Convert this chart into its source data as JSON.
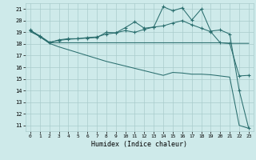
{
  "bg_color": "#ceeaea",
  "grid_color": "#aacccc",
  "line_color": "#2a6e6e",
  "xlabel": "Humidex (Indice chaleur)",
  "xlim": [
    -0.5,
    23.5
  ],
  "ylim": [
    10.5,
    21.5
  ],
  "yticks": [
    11,
    12,
    13,
    14,
    15,
    16,
    17,
    18,
    19,
    20,
    21
  ],
  "xticks": [
    0,
    1,
    2,
    3,
    4,
    5,
    6,
    7,
    8,
    9,
    10,
    11,
    12,
    13,
    14,
    15,
    16,
    17,
    18,
    19,
    20,
    21,
    22,
    23
  ],
  "series": {
    "line1_x": [
      0,
      1,
      2,
      3,
      4,
      5,
      6,
      7,
      8,
      9,
      10,
      11,
      12,
      13,
      14,
      15,
      16,
      17,
      18,
      19,
      20,
      21,
      22,
      23
    ],
    "line1_y": [
      19.2,
      18.6,
      18.1,
      18.35,
      18.45,
      18.45,
      18.5,
      18.55,
      19.0,
      18.95,
      19.4,
      19.9,
      19.35,
      19.45,
      21.2,
      20.85,
      21.1,
      20.05,
      21.0,
      19.1,
      19.2,
      18.85,
      14.0,
      10.75
    ],
    "line2_x": [
      0,
      1,
      2,
      3,
      4,
      5,
      6,
      7,
      8,
      9,
      10,
      11,
      12,
      13,
      14,
      15,
      16,
      17,
      18,
      19,
      20,
      21,
      22,
      23
    ],
    "line2_y": [
      19.15,
      18.7,
      18.15,
      18.3,
      18.4,
      18.45,
      18.55,
      18.6,
      18.85,
      18.95,
      19.15,
      19.0,
      19.25,
      19.45,
      19.55,
      19.8,
      20.0,
      19.65,
      19.35,
      19.05,
      18.1,
      18.05,
      15.25,
      15.3
    ],
    "line3_x": [
      0,
      1,
      2,
      3,
      4,
      5,
      6,
      7,
      8,
      9,
      10,
      11,
      12,
      13,
      14,
      15,
      16,
      17,
      18,
      19,
      20,
      21,
      22,
      23
    ],
    "line3_y": [
      19.05,
      18.65,
      18.1,
      18.1,
      18.1,
      18.1,
      18.1,
      18.1,
      18.1,
      18.1,
      18.1,
      18.1,
      18.1,
      18.1,
      18.1,
      18.1,
      18.1,
      18.1,
      18.1,
      18.1,
      18.1,
      18.05,
      18.05,
      18.05
    ],
    "line4_x": [
      0,
      1,
      2,
      3,
      4,
      5,
      6,
      7,
      8,
      9,
      10,
      11,
      12,
      13,
      14,
      15,
      16,
      17,
      18,
      19,
      20,
      21,
      22,
      23
    ],
    "line4_y": [
      19.15,
      18.65,
      18.05,
      17.75,
      17.5,
      17.25,
      17.0,
      16.75,
      16.5,
      16.3,
      16.1,
      15.9,
      15.7,
      15.5,
      15.3,
      15.55,
      15.5,
      15.4,
      15.4,
      15.35,
      15.25,
      15.15,
      11.0,
      10.75
    ]
  }
}
